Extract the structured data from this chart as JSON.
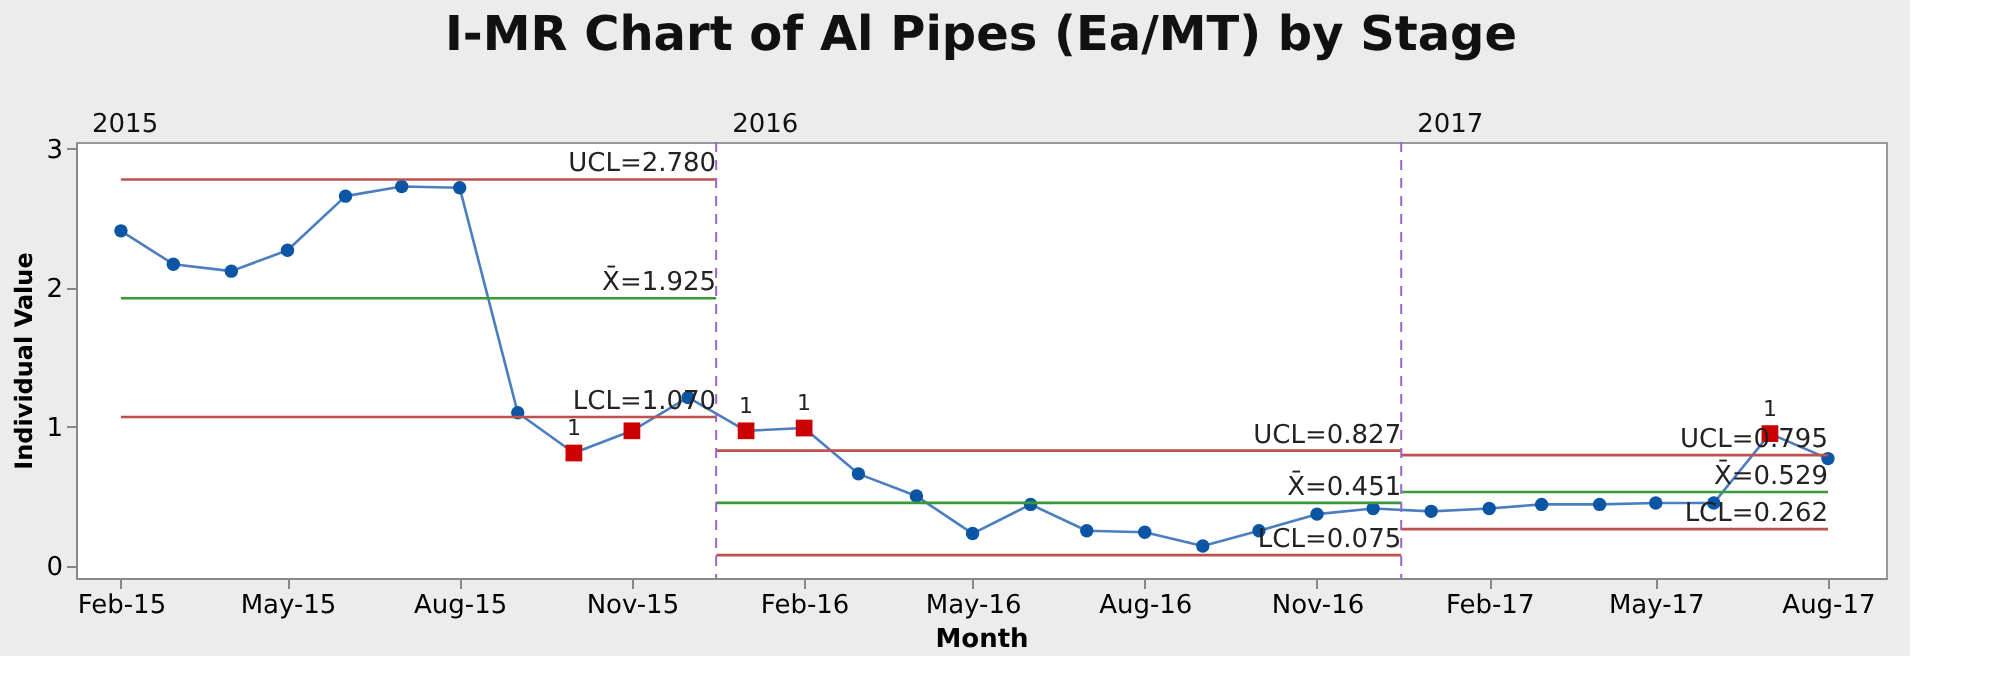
{
  "chart_data": {
    "type": "line",
    "title": "I-MR Chart of Al Pipes (Ea/MT) by Stage",
    "xlabel": "Month",
    "ylabel": "Individual Value",
    "x": [
      "2015-02",
      "2015-03",
      "2015-04",
      "2015-05",
      "2015-06",
      "2015-07",
      "2015-08",
      "2015-09",
      "2015-10",
      "2015-11",
      "2015-12",
      "2016-01",
      "2016-02",
      "2016-03",
      "2016-04",
      "2016-05",
      "2016-06",
      "2016-07",
      "2016-08",
      "2016-09",
      "2016-10",
      "2016-11",
      "2016-12",
      "2017-01",
      "2017-02",
      "2017-03",
      "2017-04",
      "2017-05",
      "2017-06",
      "2017-07",
      "2017-08"
    ],
    "series": [
      {
        "marker": "none",
        "color": "#4a7ebf",
        "values": [
          2.41,
          2.17,
          2.12,
          2.27,
          2.66,
          2.73,
          2.72,
          1.1,
          0.81,
          0.97,
          1.21,
          0.97,
          0.99,
          0.66,
          0.5,
          0.23,
          0.44,
          0.25,
          0.24,
          0.14,
          0.25,
          0.37,
          0.41,
          0.39,
          0.41,
          0.44,
          0.44,
          0.45,
          0.45,
          0.95,
          0.77
        ]
      },
      {
        "type": "scatter",
        "marker": "circle",
        "color": "#0b55a5",
        "values": [
          2.41,
          2.17,
          2.12,
          2.27,
          2.66,
          2.73,
          2.72,
          1.1,
          null,
          null,
          1.21,
          null,
          null,
          0.66,
          0.5,
          0.23,
          0.44,
          0.25,
          0.24,
          0.14,
          0.25,
          0.37,
          0.41,
          0.39,
          0.41,
          0.44,
          0.44,
          0.45,
          0.45,
          null,
          0.77
        ]
      },
      {
        "type": "scatter",
        "marker": "square",
        "color": "#cc0000",
        "values": [
          null,
          null,
          null,
          null,
          null,
          null,
          null,
          null,
          0.81,
          0.97,
          null,
          0.97,
          0.99,
          null,
          null,
          null,
          null,
          null,
          null,
          null,
          null,
          null,
          null,
          null,
          null,
          null,
          null,
          null,
          null,
          0.95,
          null
        ]
      },
      {
        "type": "line",
        "name": "UCL=2.780",
        "color": "#c0504d",
        "x": [
          "2015-02",
          "2015-12-16"
        ],
        "values": [
          2.78,
          2.78
        ]
      },
      {
        "type": "line",
        "name": "X̄=1.925",
        "color": "#3a9a3a",
        "x": [
          "2015-02",
          "2015-12-16"
        ],
        "values": [
          1.925,
          1.925
        ]
      },
      {
        "type": "line",
        "name": "LCL=1.070",
        "color": "#c0504d",
        "x": [
          "2015-02",
          "2015-12-16"
        ],
        "values": [
          1.07,
          1.07
        ]
      },
      {
        "type": "line",
        "name": "UCL=0.827",
        "color": "#c0504d",
        "x": [
          "2015-12-16",
          "2016-12-16"
        ],
        "values": [
          0.827,
          0.827
        ]
      },
      {
        "type": "line",
        "name": "X̄=0.451",
        "color": "#3a9a3a",
        "x": [
          "2015-12-16",
          "2016-12-16"
        ],
        "values": [
          0.451,
          0.451
        ]
      },
      {
        "type": "line",
        "name": "LCL=0.075",
        "color": "#c0504d",
        "x": [
          "2015-12-16",
          "2016-12-16"
        ],
        "values": [
          0.075,
          0.075
        ]
      },
      {
        "type": "line",
        "name": "UCL=0.795",
        "color": "#c0504d",
        "x": [
          "2016-12-16",
          "2017-08"
        ],
        "values": [
          0.795,
          0.795
        ]
      },
      {
        "type": "line",
        "name": "X̄=0.529",
        "color": "#3a9a3a",
        "x": [
          "2016-12-16",
          "2017-08"
        ],
        "values": [
          0.529,
          0.529
        ]
      },
      {
        "type": "line",
        "name": "LCL=0.262",
        "color": "#c0504d",
        "x": [
          "2016-12-16",
          "2017-08"
        ],
        "values": [
          0.262,
          0.262
        ]
      }
    ],
    "ref_lines": [
      {
        "axis": "x",
        "value": "2015-12-16",
        "color": "#9966cc",
        "line_style": "dashed"
      },
      {
        "axis": "x",
        "value": "2016-12-16",
        "color": "#9966cc",
        "line_style": "dashed"
      }
    ],
    "annotations": [
      "2015",
      "2016",
      "2017",
      {
        "text": "1",
        "x": "2015-10",
        "y": 0.81
      },
      {
        "text": "1",
        "x": "2016-01",
        "y": 0.97
      },
      {
        "text": "1",
        "x": "2016-02",
        "y": 0.99
      },
      {
        "text": "1",
        "x": "2017-07",
        "y": 0.95
      }
    ],
    "xlim": [
      "2015-01-08",
      "2017-09-01"
    ],
    "xticks": [
      {
        "value": "2015-02",
        "label": "Feb-15"
      },
      {
        "value": "2015-05",
        "label": "May-15"
      },
      {
        "value": "2015-08",
        "label": "Aug-15"
      },
      {
        "value": "2015-11",
        "label": "Nov-15"
      },
      {
        "value": "2016-02",
        "label": "Feb-16"
      },
      {
        "value": "2016-05",
        "label": "May-16"
      },
      {
        "value": "2016-08",
        "label": "Aug-16"
      },
      {
        "value": "2016-11",
        "label": "Nov-16"
      },
      {
        "value": "2017-02",
        "label": "Feb-17"
      },
      {
        "value": "2017-05",
        "label": "May-17"
      },
      {
        "value": "2017-08",
        "label": "Aug-17"
      }
    ],
    "ylim": [
      -0.09,
      3.05
    ],
    "yticks": [
      0,
      1,
      2,
      3
    ],
    "grid": false
  }
}
